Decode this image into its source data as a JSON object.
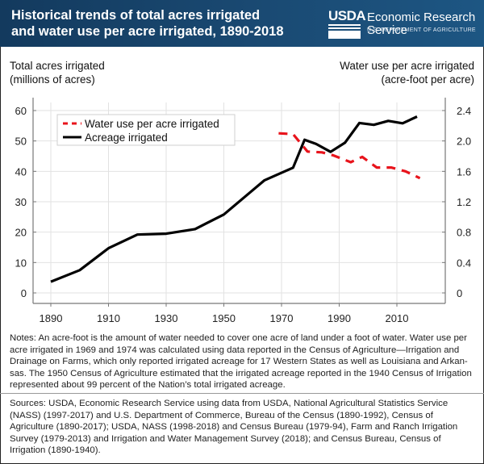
{
  "header": {
    "title": "Historical trends of total acres irrigated and water use per acre irrigated, 1890-2018",
    "logo_text": "USDA",
    "agency": "Economic Research Service",
    "department": "U.S. DEPARTMENT OF AGRICULTURE",
    "background_color": "#1a4a73"
  },
  "axis_labels": {
    "left_line1": "Total acres irrigated",
    "left_line2": "(millions of acres)",
    "right_line1": "Water use per acre irrigated",
    "right_line2": "(acre-foot per acre)"
  },
  "chart_data": {
    "type": "line",
    "title": "Historical trends of total acres irrigated and water use per acre irrigated, 1890-2018",
    "xlabel": "",
    "ylabel": "Total acres irrigated (millions of acres)",
    "ylabel_right": "Water use per acre irrigated (acre-foot per acre)",
    "xlim": [
      1884,
      2025
    ],
    "ylim": [
      -3,
      64
    ],
    "ylim_right": [
      -0.12,
      2.56
    ],
    "x_ticks": [
      1890,
      1910,
      1930,
      1950,
      1970,
      1990,
      2010
    ],
    "y_ticks": [
      0,
      10,
      20,
      30,
      40,
      50,
      60
    ],
    "y_ticks_right": [
      "0",
      "0.4",
      "0.8",
      "1.2",
      "1.6",
      "2.0",
      "2.4"
    ],
    "y_ticks_right_values": [
      0,
      0.4,
      0.8,
      1.2,
      1.6,
      2.0,
      2.4
    ],
    "grid": true,
    "legend_position": "top-left",
    "series": [
      {
        "name": "Water use per acre irrigated",
        "axis": "right",
        "style": "dashed",
        "color": "#e8141c",
        "x": [
          1969,
          1974,
          1979,
          1984,
          1988,
          1994,
          1998,
          2003,
          2008,
          2013,
          2018
        ],
        "values": [
          2.1,
          2.09,
          1.86,
          1.85,
          1.81,
          1.72,
          1.79,
          1.65,
          1.65,
          1.6,
          1.51
        ]
      },
      {
        "name": "Acreage irrigated",
        "axis": "left",
        "style": "solid",
        "color": "#000000",
        "x": [
          1890,
          1900,
          1910,
          1920,
          1930,
          1940,
          1950,
          1959,
          1964,
          1969,
          1974,
          1978,
          1982,
          1987,
          1992,
          1997,
          2002,
          2007,
          2012,
          2017
        ],
        "values": [
          3.7,
          7.5,
          14.7,
          19.2,
          19.5,
          21.0,
          25.8,
          33.0,
          37.0,
          39.1,
          41.2,
          50.4,
          49.0,
          46.4,
          49.4,
          55.9,
          55.3,
          56.6,
          55.8,
          58.0
        ]
      }
    ]
  },
  "notes": "Notes: An acre-foot is the amount of water needed to cover one acre of land under a foot of water. Water use per acre irrigated in 1969 and 1974 was calculated using data reported in the Census of Agriculture—Irrigation and Drainage on Farms, which only reported irrigated acreage for 17 Western States as well as Louisiana and Arkan-sas. The 1950 Census of Agriculture estimated that the irrigated acreage reported in the 1940 Census of Irrigation represented about 99 percent of the Nation’s total irrigated acreage.",
  "sources": "Sources: USDA, Economic Research Service using data from USDA, National Agricultural Statistics Service (NASS) (1997-2017) and U.S. Department of Commerce, Bureau of the Census (1890-1992), Census of Agriculture (1890-2017); USDA, NASS (1998-2018) and Census Bureau (1979-94), Farm and Ranch Irrigation Survey (1979-2013) and Irrigation and Water Management Survey (2018); and Census Bureau, Census of Irrigation (1890-1940)."
}
